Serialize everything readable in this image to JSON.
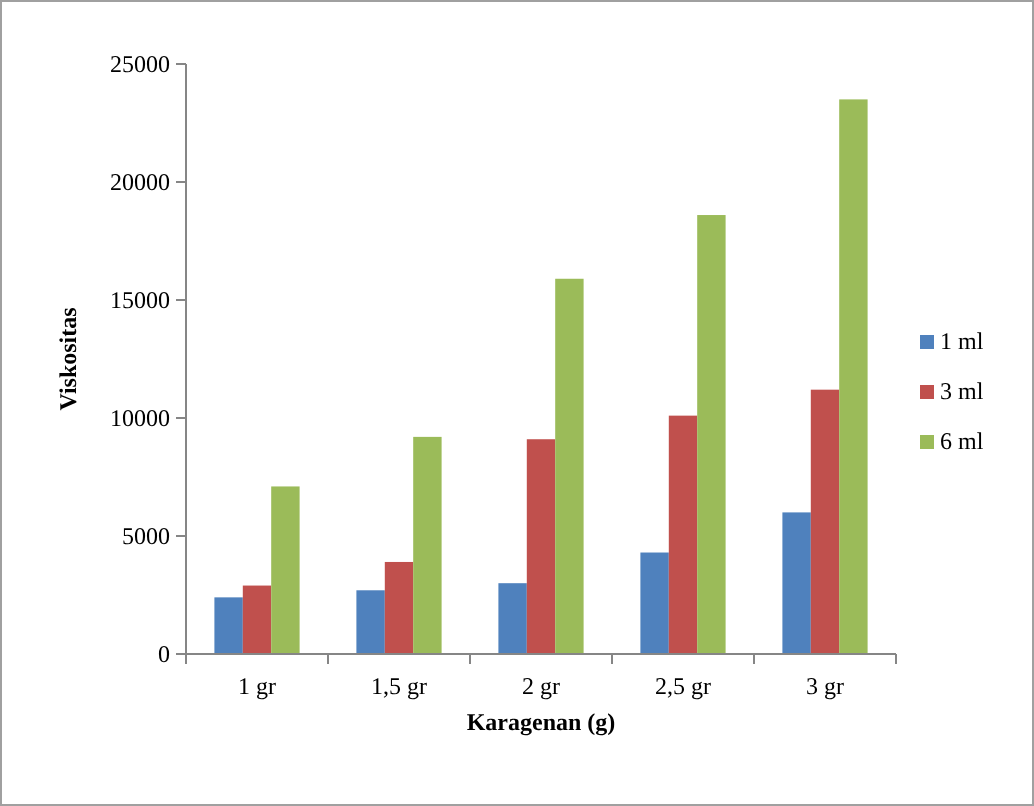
{
  "chart_data": {
    "type": "bar",
    "xlabel": "Karagenan (g)",
    "ylabel": "Viskositas",
    "categories": [
      "1 gr",
      "1,5 gr",
      "2 gr",
      "2,5 gr",
      "3 gr"
    ],
    "series": [
      {
        "name": "1 ml",
        "color": "#4f81bd",
        "values": [
          2400,
          2700,
          3000,
          4300,
          6000
        ]
      },
      {
        "name": "3 ml",
        "color": "#c0504d",
        "values": [
          2900,
          3900,
          9100,
          10100,
          11200
        ]
      },
      {
        "name": "6 ml",
        "color": "#9bbb59",
        "values": [
          7100,
          9200,
          15900,
          18600,
          23500
        ]
      }
    ],
    "ylim": [
      0,
      25000
    ],
    "yticks": [
      0,
      5000,
      10000,
      15000,
      20000,
      25000
    ],
    "grid": false,
    "legend": "right"
  }
}
